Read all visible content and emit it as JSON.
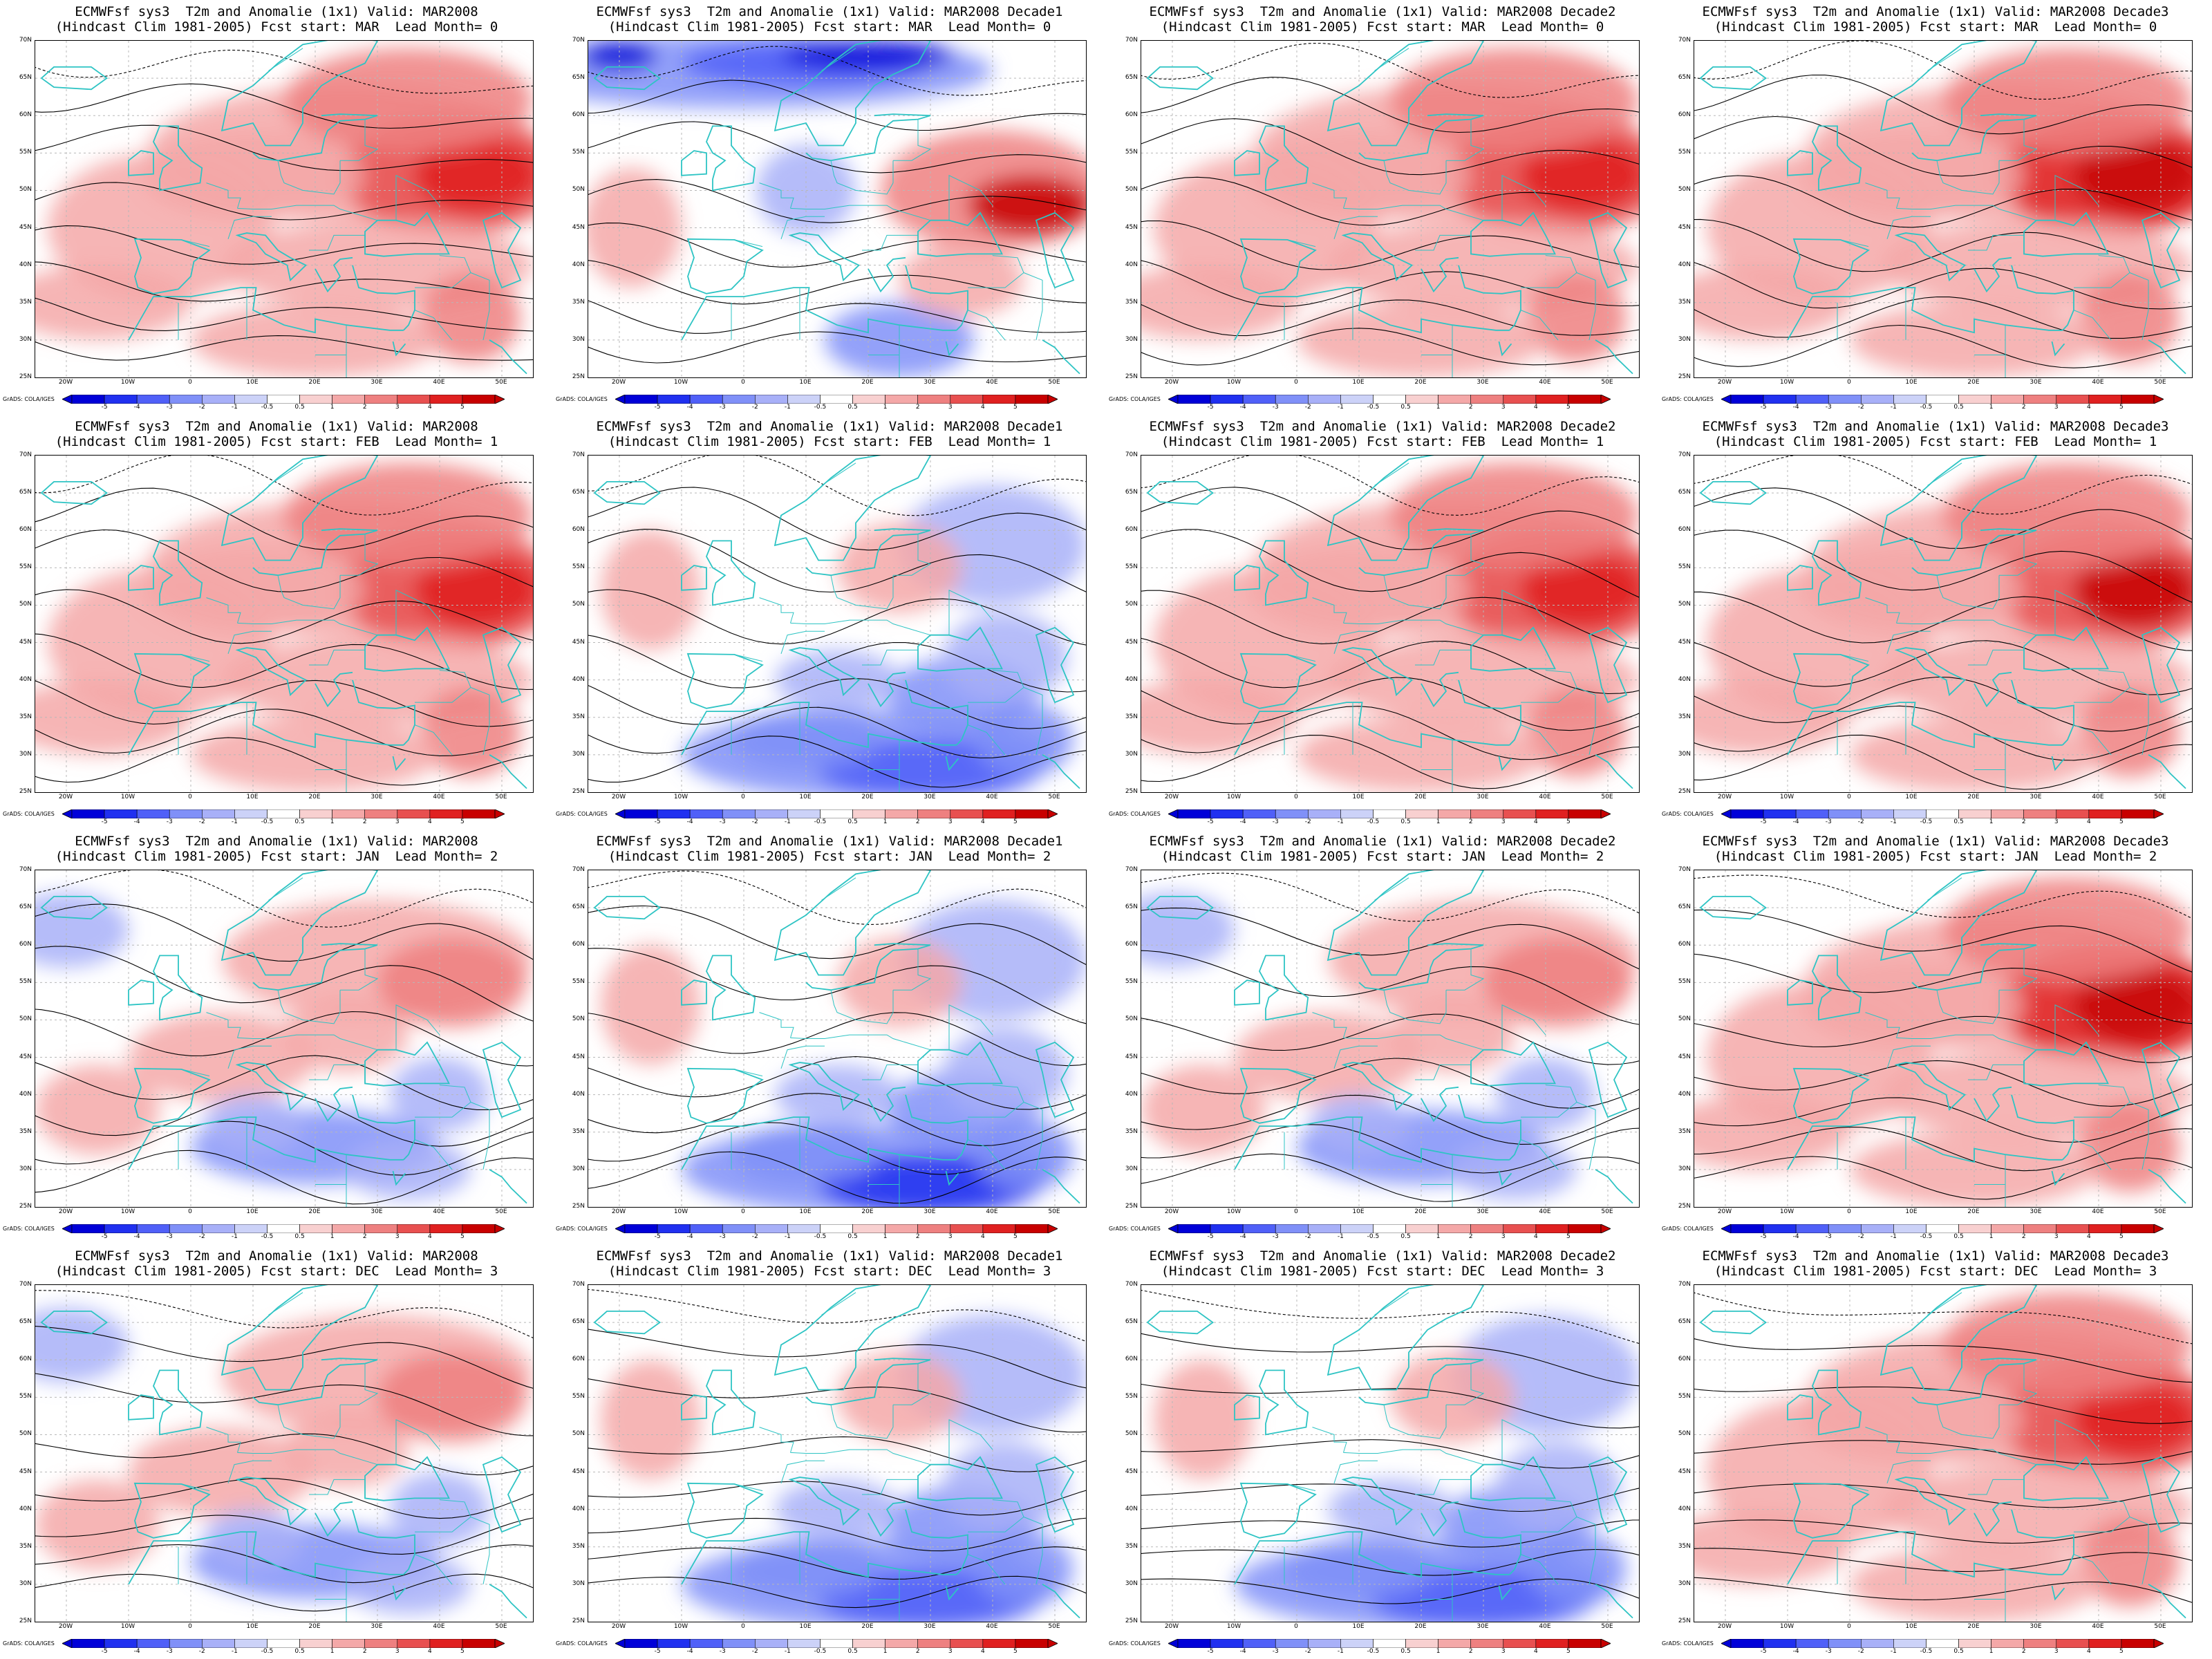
{
  "panels": [
    {
      "title1": "ECMWFsf sys3  T2m and Anomalie (1x1) Valid: MAR2008",
      "title2": "(Hindcast Clim 1981-2005) Fcst start: MAR  Lead Month= 0",
      "tone": "warm",
      "strength": 0.75
    },
    {
      "title1": "ECMWFsf sys3  T2m and Anomalie (1x1) Valid: MAR2008 Decade1",
      "title2": "(Hindcast Clim 1981-2005) Fcst start: MAR  Lead Month= 0",
      "tone": "coldnorth",
      "strength": 0.9
    },
    {
      "title1": "ECMWFsf sys3  T2m and Anomalie (1x1) Valid: MAR2008 Decade2",
      "title2": "(Hindcast Clim 1981-2005) Fcst start: MAR  Lead Month= 0",
      "tone": "warm",
      "strength": 0.6
    },
    {
      "title1": "ECMWFsf sys3  T2m and Anomalie (1x1) Valid: MAR2008 Decade3",
      "title2": "(Hindcast Clim 1981-2005) Fcst start: MAR  Lead Month= 0",
      "tone": "warm",
      "strength": 1.0
    },
    {
      "title1": "ECMWFsf sys3  T2m and Anomalie (1x1) Valid: MAR2008",
      "title2": "(Hindcast Clim 1981-2005) Fcst start: FEB  Lead Month= 1",
      "tone": "warm",
      "strength": 0.5
    },
    {
      "title1": "ECMWFsf sys3  T2m and Anomalie (1x1) Valid: MAR2008 Decade1",
      "title2": "(Hindcast Clim 1981-2005) Fcst start: FEB  Lead Month= 1",
      "tone": "coldsouth",
      "strength": 0.6
    },
    {
      "title1": "ECMWFsf sys3  T2m and Anomalie (1x1) Valid: MAR2008 Decade2",
      "title2": "(Hindcast Clim 1981-2005) Fcst start: FEB  Lead Month= 1",
      "tone": "warm",
      "strength": 0.5
    },
    {
      "title1": "ECMWFsf sys3  T2m and Anomalie (1x1) Valid: MAR2008 Decade3",
      "title2": "(Hindcast Clim 1981-2005) Fcst start: FEB  Lead Month= 1",
      "tone": "warm",
      "strength": 0.9
    },
    {
      "title1": "ECMWFsf sys3  T2m and Anomalie (1x1) Valid: MAR2008",
      "title2": "(Hindcast Clim 1981-2005) Fcst start: JAN  Lead Month= 2",
      "tone": "mixed",
      "strength": 0.6
    },
    {
      "title1": "ECMWFsf sys3  T2m and Anomalie (1x1) Valid: MAR2008 Decade1",
      "title2": "(Hindcast Clim 1981-2005) Fcst start: JAN  Lead Month= 2",
      "tone": "coldsouth",
      "strength": 1.0
    },
    {
      "title1": "ECMWFsf sys3  T2m and Anomalie (1x1) Valid: MAR2008 Decade2",
      "title2": "(Hindcast Clim 1981-2005) Fcst start: JAN  Lead Month= 2",
      "tone": "mixed",
      "strength": 0.6
    },
    {
      "title1": "ECMWFsf sys3  T2m and Anomalie (1x1) Valid: MAR2008 Decade3",
      "title2": "(Hindcast Clim 1981-2005) Fcst start: JAN  Lead Month= 2",
      "tone": "warm",
      "strength": 1.0
    },
    {
      "title1": "ECMWFsf sys3  T2m and Anomalie (1x1) Valid: MAR2008",
      "title2": "(Hindcast Clim 1981-2005) Fcst start: DEC  Lead Month= 3",
      "tone": "mixed",
      "strength": 0.5
    },
    {
      "title1": "ECMWFsf sys3  T2m and Anomalie (1x1) Valid: MAR2008 Decade1",
      "title2": "(Hindcast Clim 1981-2005) Fcst start: DEC  Lead Month= 3",
      "tone": "coldsouth",
      "strength": 0.9
    },
    {
      "title1": "ECMWFsf sys3  T2m and Anomalie (1x1) Valid: MAR2008 Decade2",
      "title2": "(Hindcast Clim 1981-2005) Fcst start: DEC  Lead Month= 3",
      "tone": "coldsouth",
      "strength": 0.5
    },
    {
      "title1": "ECMWFsf sys3  T2m and Anomalie (1x1) Valid: MAR2008 Decade3",
      "title2": "(Hindcast Clim 1981-2005) Fcst start: DEC  Lead Month= 3",
      "tone": "warm",
      "strength": 0.8
    }
  ],
  "lat_labels": [
    "70N",
    "65N",
    "60N",
    "55N",
    "50N",
    "45N",
    "40N",
    "35N",
    "30N",
    "25N"
  ],
  "lon_labels": [
    "20W",
    "10W",
    "0",
    "10E",
    "20E",
    "30E",
    "40E",
    "50E"
  ],
  "colorbar": {
    "ticks": [
      "-5",
      "-4",
      "-3",
      "-2",
      "-1",
      "-0.5",
      "0.5",
      "1",
      "2",
      "3",
      "4",
      "5"
    ],
    "colors": [
      "#0000d8",
      "#2030f0",
      "#5060f8",
      "#8090f8",
      "#a8b0f8",
      "#ccd2f8",
      "#ffffff",
      "#f8d0d0",
      "#f4a8a8",
      "#ee8080",
      "#e85050",
      "#e02020",
      "#c80000"
    ]
  },
  "credit": "GrADS: COLA/IGES",
  "colors": {
    "coastline": "#2ec4c4",
    "contour": "#000000",
    "gridline": "#b8b8b8"
  }
}
